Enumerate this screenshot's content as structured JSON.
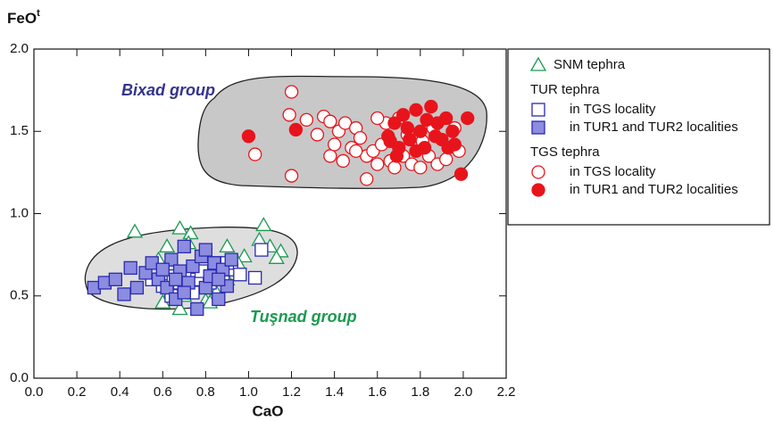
{
  "chart_data": {
    "type": "scatter",
    "x_label": "CaO",
    "y_label": "FeO",
    "y_label_sup": "t",
    "annotations": [
      "Bixad group",
      "Tuşnad group"
    ],
    "xlim": [
      0,
      2.2
    ],
    "xticks": [
      {
        "value": 0,
        "label": "0.0"
      },
      {
        "value": 0.2,
        "label": "0.2"
      },
      {
        "value": 0.4,
        "label": "0.4"
      },
      {
        "value": 0.6,
        "label": "0.6"
      },
      {
        "value": 0.8,
        "label": "0.8"
      },
      {
        "value": 1,
        "label": "1.0"
      },
      {
        "value": 1.2,
        "label": "1.2"
      },
      {
        "value": 1.4,
        "label": "1.4"
      },
      {
        "value": 1.6,
        "label": "1.6"
      },
      {
        "value": 1.8,
        "label": "1.8"
      },
      {
        "value": 2,
        "label": "2.0"
      },
      {
        "value": 2.2,
        "label": "2.2"
      }
    ],
    "ylim": [
      0,
      2
    ],
    "yticks": [
      {
        "value": 0,
        "label": "0.0"
      },
      {
        "value": 0.5,
        "label": "0.5"
      },
      {
        "value": 1,
        "label": "1.0"
      },
      {
        "value": 1.5,
        "label": "1.5"
      },
      {
        "value": 2,
        "label": "2.0"
      }
    ],
    "series": [
      {
        "name": "SNM tephra",
        "marker": "triangle",
        "filled": false,
        "color": "#1a9a50",
        "x": [
          0.47,
          0.68,
          0.73,
          0.62,
          0.72,
          0.9,
          0.98,
          1.07,
          1.05,
          1.1,
          1.15,
          1.13,
          0.6,
          0.64,
          0.7,
          0.8,
          0.85,
          0.68,
          0.9,
          0.95,
          0.58,
          0.82
        ],
        "y": [
          0.89,
          0.91,
          0.88,
          0.8,
          0.82,
          0.8,
          0.74,
          0.93,
          0.84,
          0.8,
          0.77,
          0.73,
          0.46,
          0.53,
          0.5,
          0.47,
          0.52,
          0.42,
          0.6,
          0.7,
          0.72,
          0.46
        ]
      },
      {
        "name": "in TGS locality",
        "group": "TUR tephra",
        "marker": "square",
        "filled": false,
        "color": "#2a2ab0",
        "x": [
          0.55,
          0.6,
          0.65,
          0.68,
          0.72,
          0.74,
          0.76,
          0.78,
          0.82,
          0.85,
          0.88,
          0.92,
          0.96,
          1.06,
          1.03,
          0.7,
          0.9,
          0.64
        ],
        "y": [
          0.6,
          0.56,
          0.62,
          0.58,
          0.62,
          0.52,
          0.6,
          0.65,
          0.58,
          0.7,
          0.62,
          0.66,
          0.63,
          0.78,
          0.61,
          0.55,
          0.7,
          0.5
        ]
      },
      {
        "name": "in TUR1 and TUR2 localities",
        "marker": "square",
        "filled": true,
        "color": "#2a2ab0",
        "fill": "#8c8ce0",
        "x": [
          0.28,
          0.33,
          0.38,
          0.42,
          0.45,
          0.48,
          0.52,
          0.55,
          0.58,
          0.62,
          0.64,
          0.66,
          0.68,
          0.7,
          0.72,
          0.74,
          0.76,
          0.78,
          0.8,
          0.82,
          0.84,
          0.86,
          0.88,
          0.9,
          0.92,
          0.6,
          0.7,
          0.8,
          0.66,
          0.86
        ],
        "y": [
          0.55,
          0.58,
          0.6,
          0.51,
          0.67,
          0.55,
          0.64,
          0.7,
          0.6,
          0.55,
          0.72,
          0.48,
          0.65,
          0.8,
          0.58,
          0.68,
          0.42,
          0.74,
          0.55,
          0.62,
          0.7,
          0.48,
          0.66,
          0.56,
          0.72,
          0.66,
          0.52,
          0.78,
          0.6,
          0.6
        ]
      },
      {
        "name": "in TGS locality",
        "group": "TGS tephra",
        "marker": "circle",
        "filled": false,
        "color": "#e8141c",
        "x": [
          1.03,
          1.2,
          1.19,
          1.27,
          1.32,
          1.35,
          1.38,
          1.4,
          1.42,
          1.45,
          1.48,
          1.5,
          1.52,
          1.55,
          1.55,
          1.58,
          1.6,
          1.62,
          1.64,
          1.66,
          1.68,
          1.72,
          1.76,
          1.8,
          1.84,
          1.88,
          1.92,
          1.98,
          1.2,
          1.38,
          1.5,
          1.74,
          1.81,
          1.86,
          1.6,
          1.44,
          1.96,
          1.7
        ],
        "y": [
          1.36,
          1.74,
          1.6,
          1.57,
          1.48,
          1.59,
          1.35,
          1.42,
          1.5,
          1.55,
          1.4,
          1.52,
          1.46,
          1.21,
          1.35,
          1.38,
          1.3,
          1.42,
          1.55,
          1.32,
          1.28,
          1.35,
          1.3,
          1.28,
          1.35,
          1.3,
          1.33,
          1.38,
          1.23,
          1.56,
          1.38,
          1.48,
          1.44,
          1.52,
          1.58,
          1.32,
          1.52,
          1.58
        ]
      },
      {
        "name": "in TUR1 and TUR2 localities",
        "marker": "circle",
        "filled": true,
        "color": "#e8141c",
        "x": [
          1,
          1.22,
          2.02,
          1.99,
          1.65,
          1.68,
          1.72,
          1.75,
          1.78,
          1.8,
          1.82,
          1.85,
          1.88,
          1.9,
          1.92,
          1.95,
          1.7,
          1.66,
          1.74,
          1.83,
          1.87,
          1.93,
          1.69,
          1.78,
          1.96
        ],
        "y": [
          1.47,
          1.51,
          1.58,
          1.24,
          1.47,
          1.55,
          1.6,
          1.45,
          1.63,
          1.5,
          1.4,
          1.65,
          1.55,
          1.45,
          1.58,
          1.5,
          1.4,
          1.44,
          1.52,
          1.57,
          1.47,
          1.4,
          1.35,
          1.38,
          1.42
        ]
      }
    ]
  }
}
